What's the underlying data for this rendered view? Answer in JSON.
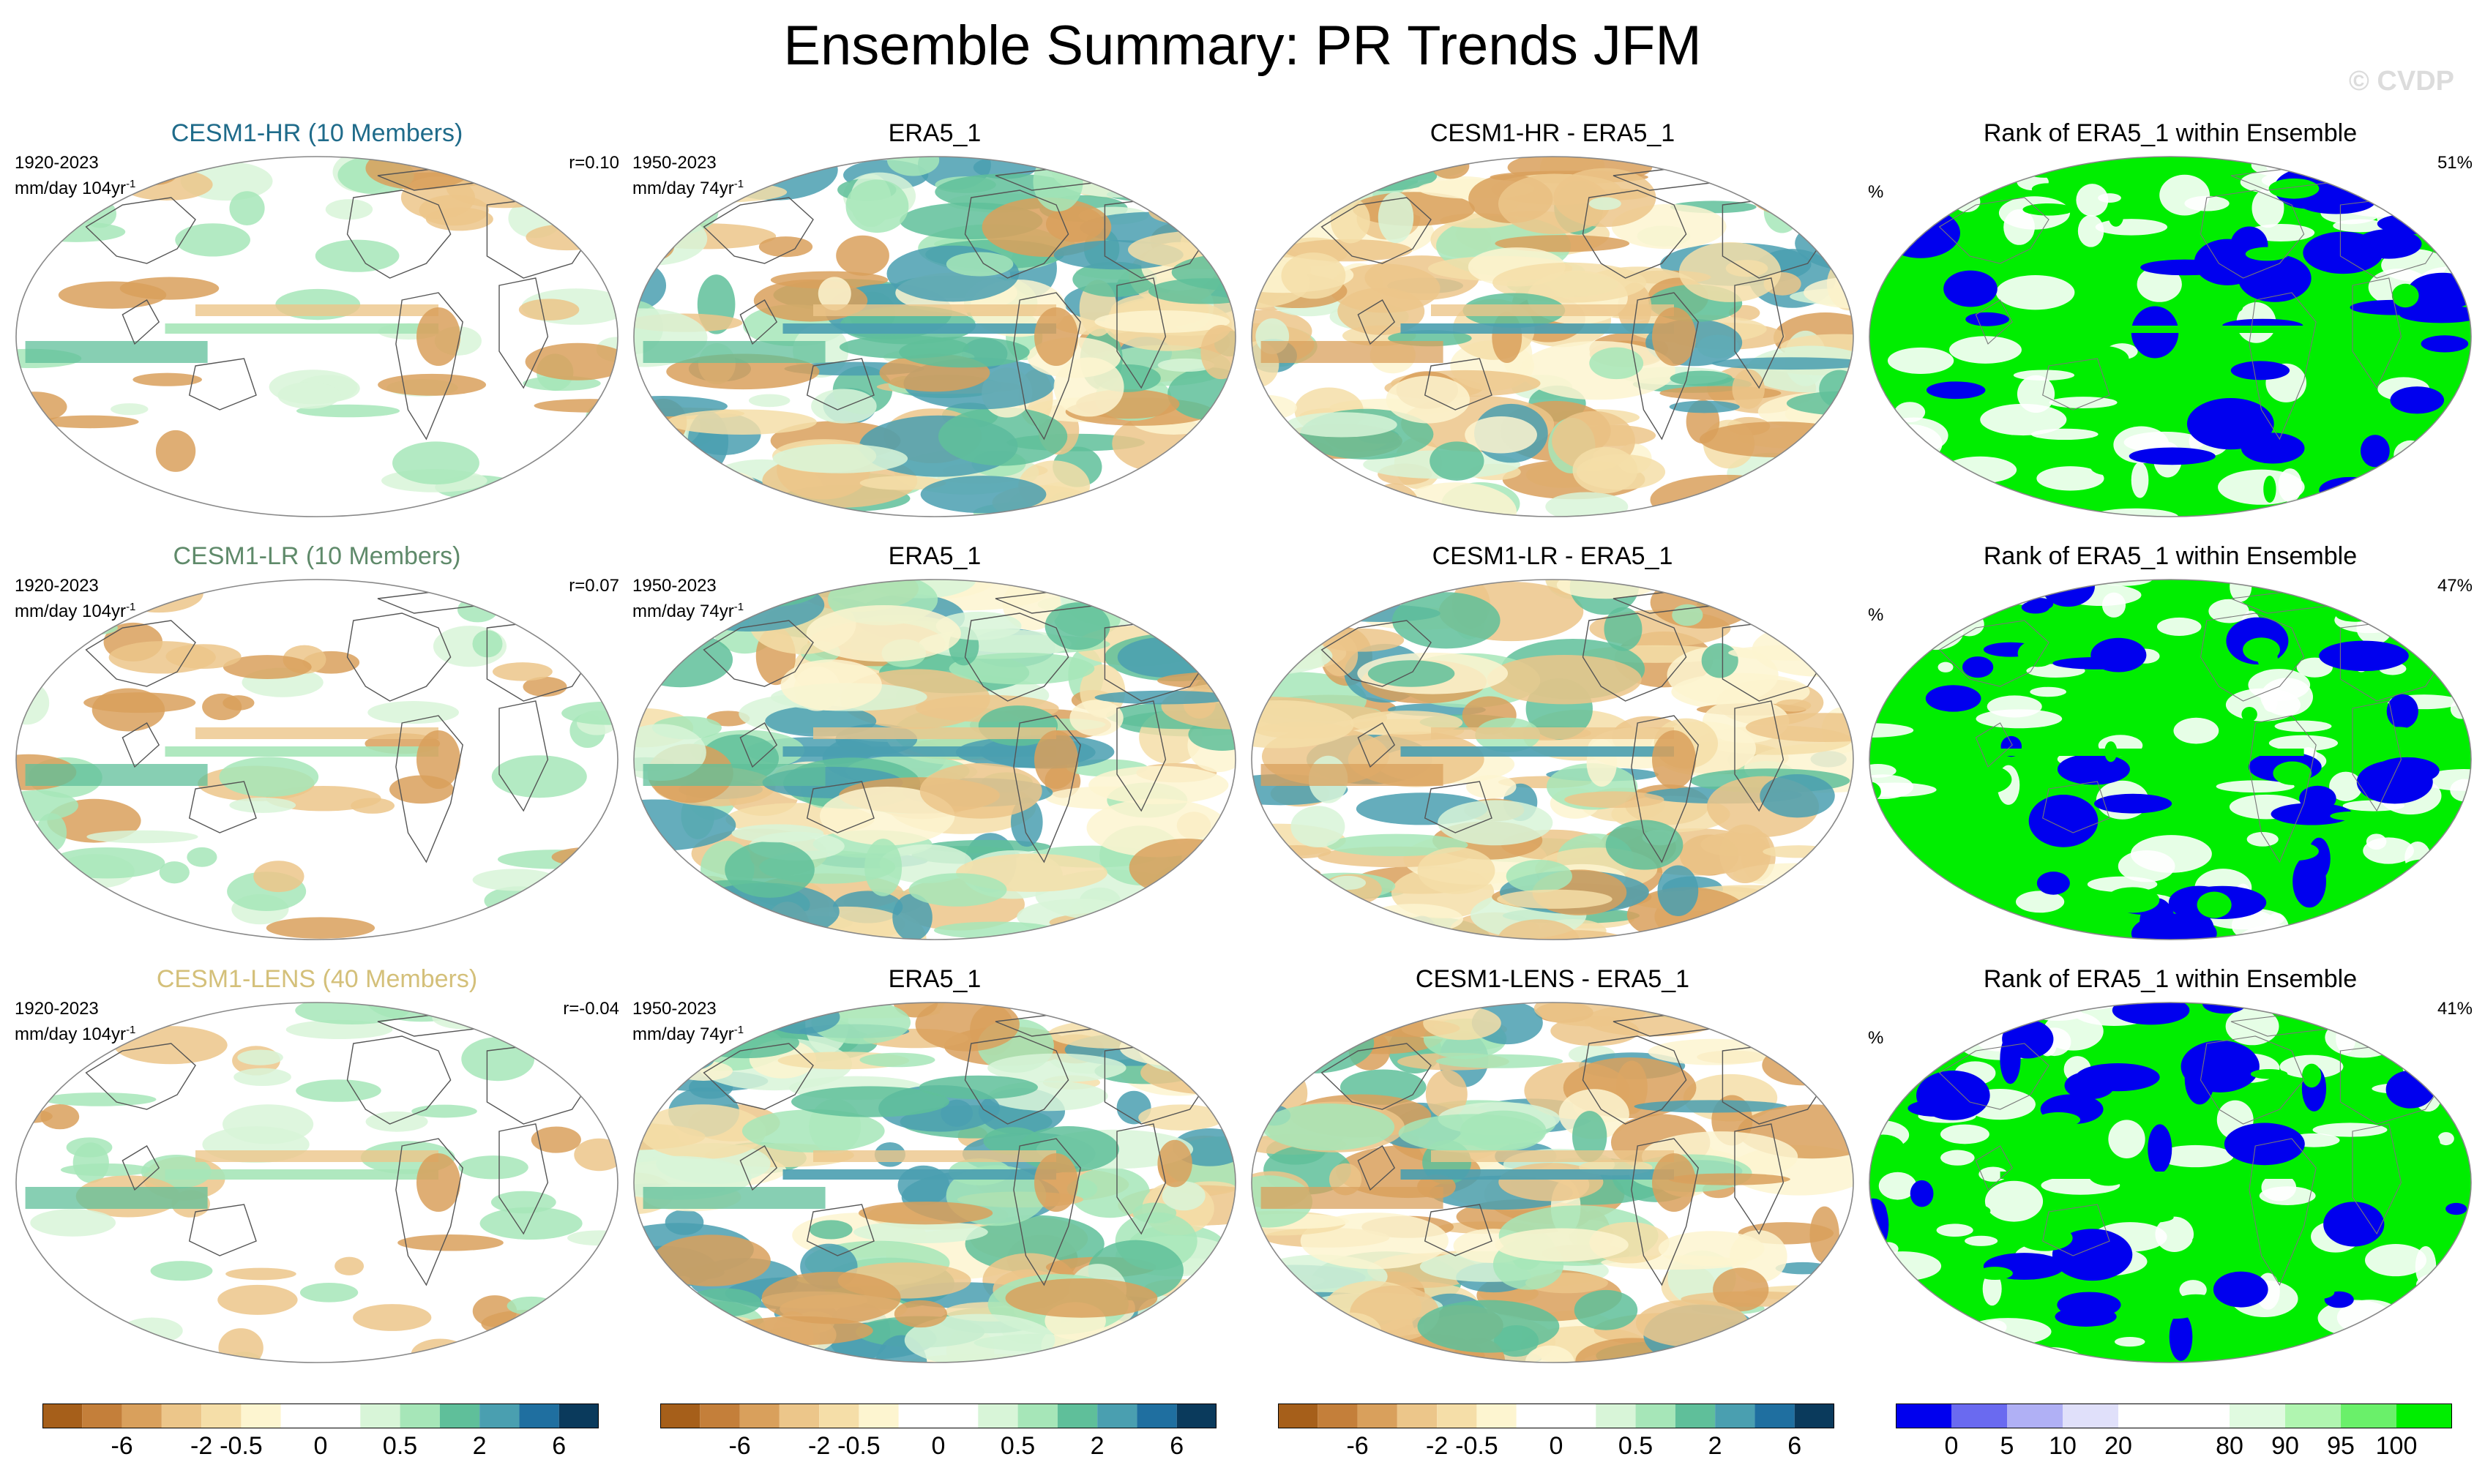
{
  "title": "Ensemble Summary: PR Trends JFM",
  "watermark": "© CVDP",
  "chart_data": {
    "type": "heatmap",
    "variable": "PR",
    "season": "JFM",
    "rows": [
      {
        "model": {
          "title": "CESM1-HR (10 Members)",
          "title_color": "#1f6b8a",
          "period": "1920-2023",
          "units": "mm/day 104yr",
          "units_sup": "-1",
          "corr": "r=0.10"
        },
        "obs": {
          "title": "ERA5_1",
          "period": "1950-2023",
          "units": "mm/day 74yr",
          "units_sup": "-1"
        },
        "diff": {
          "title": "CESM1-HR - ERA5_1"
        },
        "rank": {
          "title": "Rank of ERA5_1 within Ensemble",
          "unit": "%",
          "value": "51%"
        }
      },
      {
        "model": {
          "title": "CESM1-LR (10 Members)",
          "title_color": "#5f8a6a",
          "period": "1920-2023",
          "units": "mm/day 104yr",
          "units_sup": "-1",
          "corr": "r=0.07"
        },
        "obs": {
          "title": "ERA5_1",
          "period": "1950-2023",
          "units": "mm/day 74yr",
          "units_sup": "-1"
        },
        "diff": {
          "title": "CESM1-LR - ERA5_1"
        },
        "rank": {
          "title": "Rank of ERA5_1 within Ensemble",
          "unit": "%",
          "value": "47%"
        }
      },
      {
        "model": {
          "title": "CESM1-LENS (40 Members)",
          "title_color": "#d4c07a",
          "period": "1920-2023",
          "units": "mm/day 104yr",
          "units_sup": "-1",
          "corr": "r=-0.04"
        },
        "obs": {
          "title": "ERA5_1",
          "period": "1950-2023",
          "units": "mm/day 74yr",
          "units_sup": "-1"
        },
        "diff": {
          "title": "CESM1-LENS - ERA5_1"
        },
        "rank": {
          "title": "Rank of ERA5_1 within Ensemble",
          "unit": "%",
          "value": "41%"
        }
      }
    ],
    "colorbars": {
      "trend": {
        "colors": [
          "#a65f1a",
          "#c47f3a",
          "#d9a05c",
          "#ecc68a",
          "#f5dea8",
          "#fdf5d0",
          "#ffffff",
          "#ffffff",
          "#d8f5d8",
          "#a6e6b8",
          "#5fbf9a",
          "#4a9fb0",
          "#1f6fa0",
          "#0a3a5c"
        ],
        "ticks": [
          "-6",
          "-2",
          "-0.5",
          "0",
          "0.5",
          "2",
          "6"
        ]
      },
      "rank": {
        "colors": [
          "#0000ee",
          "#6a6af0",
          "#b0b0f5",
          "#e0e0fa",
          "#ffffff",
          "#ffffff",
          "#e0fae0",
          "#b0f5b0",
          "#6af06a",
          "#00ee00"
        ],
        "ticks": [
          "0",
          "5",
          "10",
          "20",
          "80",
          "90",
          "95",
          "100"
        ]
      }
    }
  }
}
